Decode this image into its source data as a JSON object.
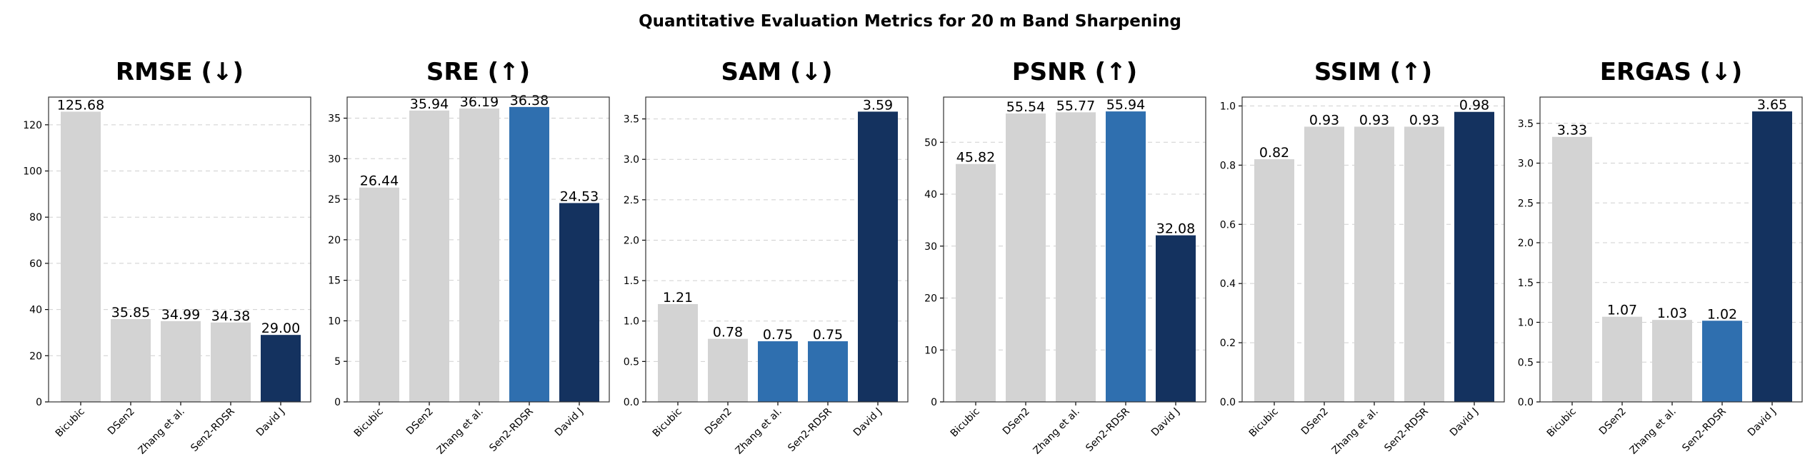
{
  "figure_title": "Quantitative Evaluation Metrics for 20 m Band Sharpening",
  "colors": {
    "grey": "#d3d3d3",
    "mid_blue": "#2f6faf",
    "dark_blue": "#14325f"
  },
  "chart_data": [
    {
      "type": "bar",
      "title": "RMSE (↓)",
      "categories": [
        "Bicubic",
        "DSen2",
        "Zhang et al.",
        "Sen2-RDSR",
        "David J"
      ],
      "values": [
        125.68,
        35.85,
        34.99,
        34.38,
        29.0
      ],
      "labels": [
        "125.68",
        "35.85",
        "34.99",
        "34.38",
        "29.00"
      ],
      "bar_colors": [
        "grey",
        "grey",
        "grey",
        "grey",
        "dark_blue"
      ],
      "ylim": [
        0,
        132
      ],
      "yticks": [
        0,
        20,
        40,
        60,
        80,
        100,
        120
      ],
      "ytick_labels": [
        "0",
        "20",
        "40",
        "60",
        "80",
        "100",
        "120"
      ],
      "grid": true
    },
    {
      "type": "bar",
      "title": "SRE (↑)",
      "categories": [
        "Bicubic",
        "DSen2",
        "Zhang et al.",
        "Sen2-RDSR",
        "David J"
      ],
      "values": [
        26.44,
        35.94,
        36.19,
        36.38,
        24.53
      ],
      "labels": [
        "26.44",
        "35.94",
        "36.19",
        "36.38",
        "24.53"
      ],
      "bar_colors": [
        "grey",
        "grey",
        "grey",
        "mid_blue",
        "dark_blue"
      ],
      "ylim": [
        0,
        37.6
      ],
      "yticks": [
        0,
        5,
        10,
        15,
        20,
        25,
        30,
        35
      ],
      "ytick_labels": [
        "0",
        "5",
        "10",
        "15",
        "20",
        "25",
        "30",
        "35"
      ],
      "grid": true
    },
    {
      "type": "bar",
      "title": "SAM (↓)",
      "categories": [
        "Bicubic",
        "DSen2",
        "Zhang et al.",
        "Sen2-RDSR",
        "David J"
      ],
      "values": [
        1.21,
        0.78,
        0.75,
        0.75,
        3.59
      ],
      "labels": [
        "1.21",
        "0.78",
        "0.75",
        "0.75",
        "3.59"
      ],
      "bar_colors": [
        "grey",
        "grey",
        "mid_blue",
        "mid_blue",
        "dark_blue"
      ],
      "ylim": [
        0,
        3.77
      ],
      "yticks": [
        0,
        0.5,
        1.0,
        1.5,
        2.0,
        2.5,
        3.0,
        3.5
      ],
      "ytick_labels": [
        "0.0",
        "0.5",
        "1.0",
        "1.5",
        "2.0",
        "2.5",
        "3.0",
        "3.5"
      ],
      "grid": true
    },
    {
      "type": "bar",
      "title": "PSNR (↑)",
      "categories": [
        "Bicubic",
        "DSen2",
        "Zhang et al.",
        "Sen2-RDSR",
        "David J"
      ],
      "values": [
        45.82,
        55.54,
        55.77,
        55.94,
        32.08
      ],
      "labels": [
        "45.82",
        "55.54",
        "55.77",
        "55.94",
        "32.08"
      ],
      "bar_colors": [
        "grey",
        "grey",
        "grey",
        "mid_blue",
        "dark_blue"
      ],
      "ylim": [
        0,
        58.7
      ],
      "yticks": [
        0,
        10,
        20,
        30,
        40,
        50
      ],
      "ytick_labels": [
        "0",
        "10",
        "20",
        "30",
        "40",
        "50"
      ],
      "grid": true
    },
    {
      "type": "bar",
      "title": "SSIM (↑)",
      "categories": [
        "Bicubic",
        "DSen2",
        "Zhang et al.",
        "Sen2-RDSR",
        "David J"
      ],
      "values": [
        0.82,
        0.93,
        0.93,
        0.93,
        0.98
      ],
      "labels": [
        "0.82",
        "0.93",
        "0.93",
        "0.93",
        "0.98"
      ],
      "bar_colors": [
        "grey",
        "grey",
        "grey",
        "grey",
        "dark_blue"
      ],
      "ylim": [
        0,
        1.03
      ],
      "yticks": [
        0,
        0.2,
        0.4,
        0.6,
        0.8,
        1.0
      ],
      "ytick_labels": [
        "0.0",
        "0.2",
        "0.4",
        "0.6",
        "0.8",
        "1.0"
      ],
      "grid": true
    },
    {
      "type": "bar",
      "title": "ERGAS (↓)",
      "categories": [
        "Bicubic",
        "DSen2",
        "Zhang et al.",
        "Sen2-RDSR",
        "David J"
      ],
      "values": [
        3.33,
        1.07,
        1.03,
        1.02,
        3.65
      ],
      "labels": [
        "3.33",
        "1.07",
        "1.03",
        "1.02",
        "3.65"
      ],
      "bar_colors": [
        "grey",
        "grey",
        "grey",
        "mid_blue",
        "dark_blue"
      ],
      "ylim": [
        0,
        3.83
      ],
      "yticks": [
        0,
        0.5,
        1.0,
        1.5,
        2.0,
        2.5,
        3.0,
        3.5
      ],
      "ytick_labels": [
        "0.0",
        "0.5",
        "1.0",
        "1.5",
        "2.0",
        "2.5",
        "3.0",
        "3.5"
      ],
      "grid": true
    }
  ]
}
